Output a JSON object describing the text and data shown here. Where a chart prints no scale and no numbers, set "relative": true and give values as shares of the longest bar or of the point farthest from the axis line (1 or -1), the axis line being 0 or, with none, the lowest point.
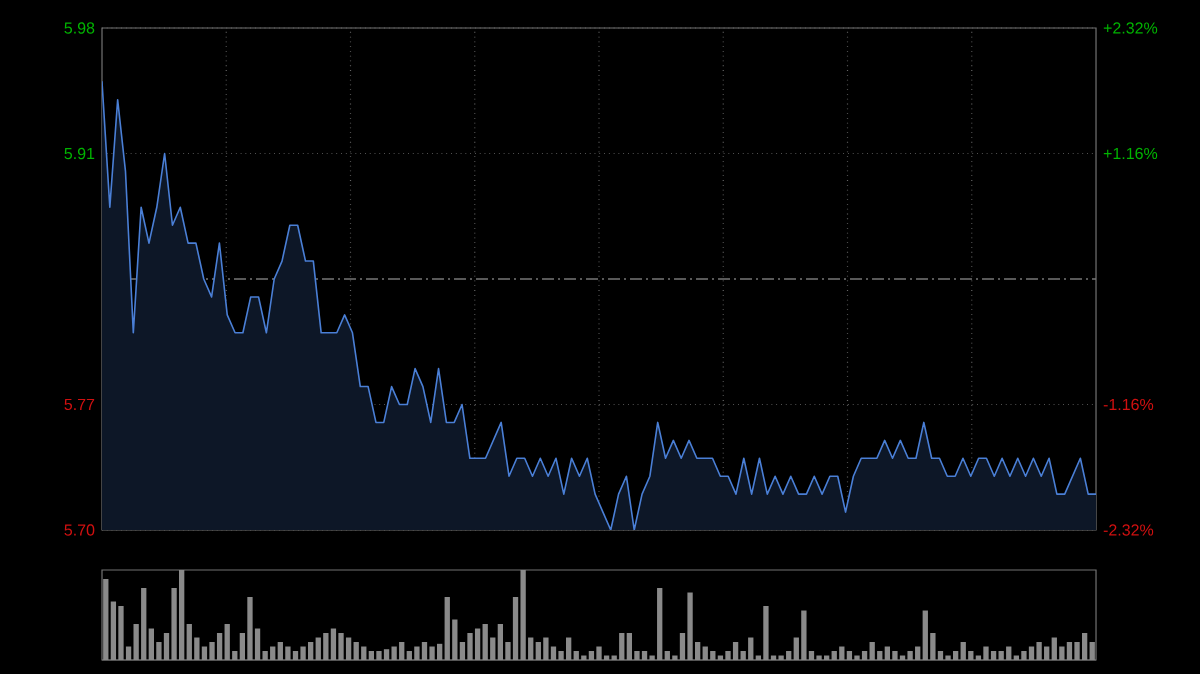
{
  "chart_data": [
    {
      "type": "area",
      "color": "#4a7fd6",
      "categories": [
        null,
        null,
        null,
        null,
        null,
        null,
        null,
        null,
        null,
        null,
        null,
        null,
        null,
        null,
        null,
        null,
        null,
        null,
        null,
        null,
        null,
        null,
        null,
        null,
        null,
        null,
        null,
        null,
        null,
        null,
        null,
        null,
        null,
        null,
        null,
        null,
        null,
        null,
        null,
        null,
        null,
        null,
        null,
        null,
        null,
        null,
        null,
        null,
        null,
        null,
        null,
        null,
        null,
        null,
        null,
        null,
        null,
        null,
        null,
        null,
        null,
        null,
        null,
        null,
        null,
        null,
        null,
        null,
        null,
        null,
        null,
        null,
        null,
        null,
        null,
        null,
        null,
        null,
        null,
        null,
        null,
        null,
        null,
        null,
        null,
        null,
        null,
        null,
        null,
        null,
        null,
        null,
        null,
        null,
        null,
        null,
        null,
        null,
        null,
        null,
        null,
        null,
        null,
        null,
        null,
        null,
        null,
        null,
        null,
        null,
        null,
        null,
        null,
        null,
        null,
        null,
        null,
        null,
        null,
        null,
        null,
        null,
        null,
        null,
        null,
        null,
        null,
        null
      ],
      "values": [
        5.95,
        5.88,
        5.94,
        5.9,
        5.81,
        5.88,
        5.86,
        5.88,
        5.91,
        5.87,
        5.88,
        5.86,
        5.86,
        5.84,
        5.83,
        5.86,
        5.82,
        5.81,
        5.81,
        5.83,
        5.83,
        5.81,
        5.84,
        5.85,
        5.87,
        5.87,
        5.85,
        5.85,
        5.81,
        5.81,
        5.81,
        5.82,
        5.81,
        5.78,
        5.78,
        5.76,
        5.76,
        5.78,
        5.77,
        5.77,
        5.79,
        5.78,
        5.76,
        5.79,
        5.76,
        5.76,
        5.77,
        5.74,
        5.74,
        5.74,
        5.75,
        5.76,
        5.73,
        5.74,
        5.74,
        5.73,
        5.74,
        5.73,
        5.74,
        5.72,
        5.74,
        5.73,
        5.74,
        5.72,
        5.71,
        5.7,
        5.72,
        5.73,
        5.7,
        5.72,
        5.73,
        5.76,
        5.74,
        5.75,
        5.74,
        5.75,
        5.74,
        5.74,
        5.74,
        5.73,
        5.73,
        5.72,
        5.74,
        5.72,
        5.74,
        5.72,
        5.73,
        5.72,
        5.73,
        5.72,
        5.72,
        5.73,
        5.72,
        5.73,
        5.73,
        5.71,
        5.73,
        5.74,
        5.74,
        5.74,
        5.75,
        5.74,
        5.75,
        5.74,
        5.74,
        5.76,
        5.74,
        5.74,
        5.73,
        5.73,
        5.74,
        5.73,
        5.74,
        5.74,
        5.73,
        5.74,
        5.73,
        5.74,
        5.73,
        5.74,
        5.73,
        5.74,
        5.72,
        5.72,
        5.73,
        5.74,
        5.72,
        5.72
      ],
      "ylim": [
        5.7,
        5.98
      ],
      "yticks": [
        {
          "value": 5.7,
          "label": "5.70"
        },
        5.77,
        5.91,
        5.98
      ],
      "y2lim": [
        -2.32,
        2.32
      ],
      "y2ticks": [
        {
          "value": -2.32,
          "label": "-2.32%"
        },
        {
          "value": -1.16,
          "label": "-1.16%"
        },
        {
          "value": 1.16,
          "label": "+1.16%"
        },
        {
          "value": 2.32,
          "label": "+2.32%"
        }
      ],
      "ref_lines": [
        {
          "axis": "y",
          "value": 5.84,
          "color": "#777777",
          "line_style": "dashed"
        }
      ],
      "grid": true
    },
    {
      "type": "bar",
      "relative": true,
      "color": "#8a8a8a",
      "categories": [
        null,
        null,
        null,
        null,
        null,
        null,
        null,
        null,
        null,
        null,
        null,
        null,
        null,
        null,
        null,
        null,
        null,
        null,
        null,
        null,
        null,
        null,
        null,
        null,
        null,
        null,
        null,
        null,
        null,
        null,
        null,
        null,
        null,
        null,
        null,
        null,
        null,
        null,
        null,
        null,
        null,
        null,
        null,
        null,
        null,
        null,
        null,
        null,
        null,
        null,
        null,
        null,
        null,
        null,
        null,
        null,
        null,
        null,
        null,
        null,
        null,
        null,
        null,
        null,
        null,
        null,
        null,
        null,
        null,
        null,
        null,
        null,
        null,
        null,
        null,
        null,
        null,
        null,
        null,
        null,
        null,
        null,
        null,
        null,
        null,
        null,
        null,
        null,
        null,
        null,
        null,
        null,
        null,
        null,
        null,
        null,
        null,
        null,
        null,
        null,
        null,
        null,
        null,
        null,
        null,
        null,
        null,
        null,
        null,
        null,
        null,
        null,
        null,
        null,
        null,
        null,
        null,
        null,
        null,
        null,
        null,
        null,
        null,
        null,
        null,
        null,
        null,
        null,
        null,
        null,
        null
      ],
      "values": [
        0.9,
        0.65,
        0.6,
        0.15,
        0.4,
        0.8,
        0.35,
        0.2,
        0.3,
        0.8,
        1.0,
        0.4,
        0.25,
        0.15,
        0.2,
        0.3,
        0.4,
        0.1,
        0.3,
        0.7,
        0.35,
        0.1,
        0.15,
        0.2,
        0.15,
        0.1,
        0.15,
        0.2,
        0.25,
        0.3,
        0.35,
        0.3,
        0.25,
        0.2,
        0.15,
        0.1,
        0.1,
        0.12,
        0.15,
        0.2,
        0.1,
        0.15,
        0.2,
        0.15,
        0.18,
        0.7,
        0.45,
        0.2,
        0.3,
        0.35,
        0.4,
        0.25,
        0.4,
        0.2,
        0.7,
        1.0,
        0.25,
        0.2,
        0.25,
        0.15,
        0.1,
        0.25,
        0.1,
        0.05,
        0.1,
        0.15,
        0.05,
        0.05,
        0.3,
        0.3,
        0.1,
        0.1,
        0.05,
        0.8,
        0.1,
        0.05,
        0.3,
        0.75,
        0.2,
        0.15,
        0.1,
        0.05,
        0.1,
        0.2,
        0.1,
        0.25,
        0.05,
        0.6,
        0.05,
        0.05,
        0.1,
        0.25,
        0.55,
        0.1,
        0.05,
        0.05,
        0.1,
        0.15,
        0.1,
        0.05,
        0.1,
        0.2,
        0.1,
        0.15,
        0.1,
        0.05,
        0.1,
        0.15,
        0.55,
        0.3,
        0.1,
        0.05,
        0.1,
        0.2,
        0.1,
        0.05,
        0.15,
        0.1,
        0.1,
        0.15,
        0.05,
        0.1,
        0.15,
        0.2,
        0.15,
        0.25,
        0.15,
        0.2,
        0.2,
        0.3,
        0.2
      ]
    }
  ]
}
